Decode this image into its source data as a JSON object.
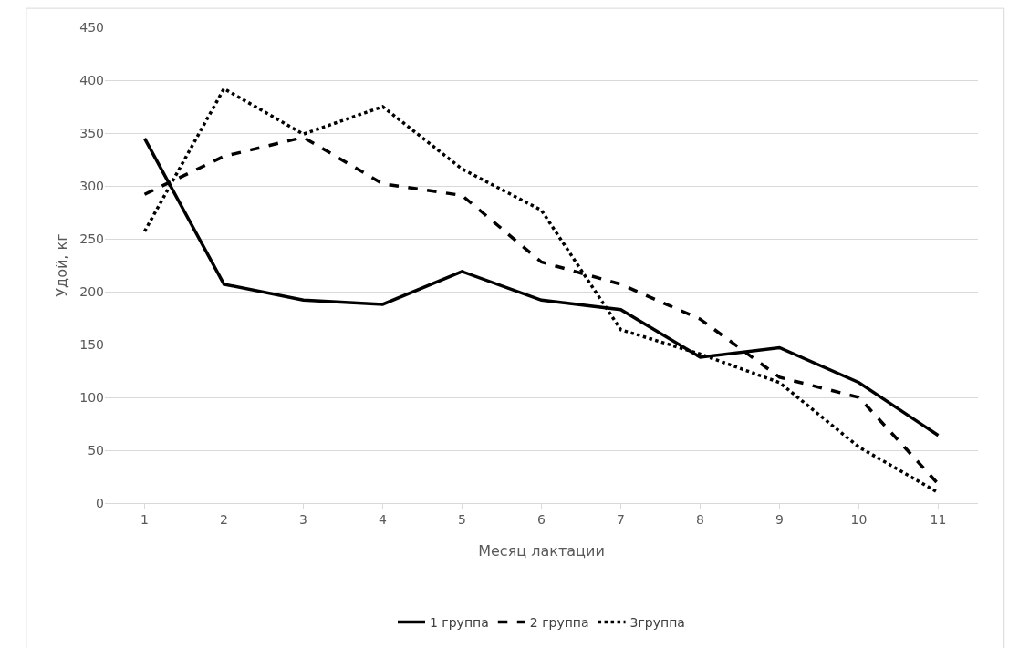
{
  "chart_data": {
    "type": "line",
    "xlabel": "Месяц лактации",
    "ylabel": "Удой, кг",
    "categories": [
      "1",
      "2",
      "3",
      "4",
      "5",
      "6",
      "7",
      "8",
      "9",
      "10",
      "11"
    ],
    "series": [
      {
        "name": "1 группа",
        "color": "#000000",
        "line_style": "solid",
        "values": [
          345,
          207,
          192,
          188,
          219,
          192,
          183,
          138,
          147,
          114,
          64
        ]
      },
      {
        "name": "2 группа",
        "color": "#000000",
        "line_style": "dashed",
        "values": [
          292,
          328,
          346,
          302,
          291,
          228,
          207,
          174,
          119,
          100,
          18
        ]
      },
      {
        "name": "3группа",
        "color": "#000000",
        "line_style": "dotted",
        "values": [
          257,
          392,
          349,
          375,
          316,
          277,
          164,
          141,
          114,
          53,
          10
        ]
      }
    ],
    "ylim": [
      0,
      450
    ],
    "yticks": [
      0,
      50,
      100,
      150,
      200,
      250,
      300,
      350,
      400,
      450
    ],
    "grid": "y",
    "legend": "bottom",
    "marker": "none"
  }
}
